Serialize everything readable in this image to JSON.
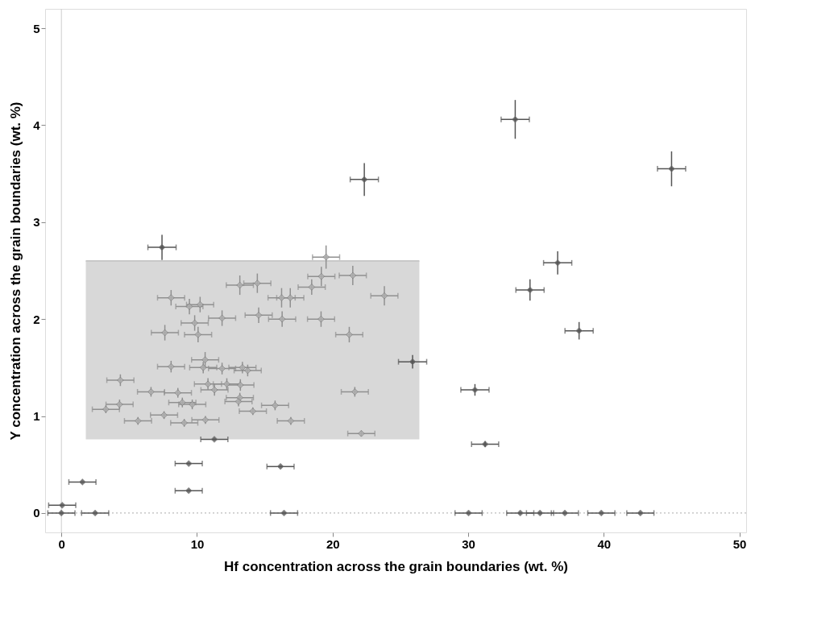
{
  "chart_data": {
    "type": "scatter",
    "xlabel": "Hf concentration across the grain boundaries (wt. %)",
    "ylabel": "Y concentration across the grain boundaries (wt. %)",
    "xlim": [
      -1.2,
      50.5
    ],
    "ylim": [
      -0.2,
      5.2
    ],
    "xticks": [
      0,
      10,
      20,
      30,
      40,
      50
    ],
    "yticks": [
      {
        "value": 0,
        "label": "0"
      },
      {
        "value": 1,
        "label": "1"
      },
      {
        "value": 2,
        "label": "2"
      },
      {
        "value": 3,
        "label": "3"
      },
      {
        "value": 4,
        "label": "4"
      },
      {
        "value": 5,
        "label": "5"
      }
    ],
    "grid": false,
    "legend": false,
    "marker": "diamond",
    "ref_lines": [
      {
        "axis": "y",
        "value": 0,
        "color": "#aaaaaa",
        "line_style": "dotted"
      },
      {
        "axis": "x",
        "value": 0,
        "color": "#cccccc",
        "line_style": "solid"
      }
    ],
    "series": [
      {
        "type": "line",
        "marker": "none",
        "color": "#c8c8c8",
        "x": [
          1.8,
          26.4
        ],
        "values": [
          2.6,
          2.6
        ],
        "lower": [
          0.76,
          0.76
        ],
        "upper": [
          2.6,
          2.6
        ]
      },
      {
        "color": "#b0b0b0",
        "x": [
          19.52,
          19.17,
          21.49,
          18.46,
          13.16,
          14.45,
          16.24,
          16.88,
          23.82,
          8.09,
          9.44,
          10.23,
          11.85,
          14.55,
          16.28,
          19.15,
          9.83,
          7.63,
          10.08,
          21.23,
          10.6,
          8.09,
          10.46,
          11.85,
          13.35,
          13.74,
          4.35,
          10.81,
          12.2,
          13.2,
          11.29,
          6.61,
          8.59,
          21.64,
          13.16,
          13.06,
          8.92,
          9.65,
          15.76,
          4.29,
          3.28,
          7.57,
          14.12,
          5.65,
          9.06,
          10.62,
          16.92,
          22.12
        ],
        "values": [
          2.64,
          2.44,
          2.45,
          2.33,
          2.35,
          2.37,
          2.22,
          2.22,
          2.24,
          2.22,
          2.13,
          2.15,
          2.01,
          2.04,
          2.0,
          2.0,
          1.96,
          1.86,
          1.84,
          1.84,
          1.58,
          1.51,
          1.5,
          1.49,
          1.5,
          1.47,
          1.37,
          1.33,
          1.33,
          1.32,
          1.27,
          1.25,
          1.24,
          1.25,
          1.19,
          1.15,
          1.14,
          1.12,
          1.11,
          1.12,
          1.07,
          1.01,
          1.05,
          0.95,
          0.93,
          0.96,
          0.95,
          0.82
        ],
        "errors": [
          0.12,
          0.1,
          0.1,
          0.08,
          0.1,
          0.1,
          0.1,
          0.1,
          0.1,
          0.08,
          0.08,
          0.08,
          0.08,
          0.08,
          0.08,
          0.08,
          0.08,
          0.08,
          0.08,
          0.08,
          0.08,
          0.06,
          0.06,
          0.06,
          0.06,
          0.06,
          0.06,
          0.06,
          0.06,
          0.06,
          0.06,
          0.05,
          0.05,
          0.05,
          0.05,
          0.05,
          0.05,
          0.05,
          0.05,
          0.05,
          0.04,
          0.04,
          0.04,
          0.04,
          0.04,
          0.04,
          0.04,
          0.03
        ],
        "xerrors": [
          1.0,
          1.0,
          1.0,
          1.0,
          1.0,
          1.0,
          1.0,
          1.0,
          1.0,
          1.0,
          1.0,
          1.0,
          1.0,
          1.0,
          1.0,
          1.0,
          1.0,
          1.0,
          1.0,
          1.0,
          1.0,
          1.0,
          1.0,
          1.0,
          1.0,
          1.0,
          1.0,
          1.0,
          1.0,
          1.0,
          1.0,
          1.0,
          1.0,
          1.0,
          1.0,
          1.0,
          1.0,
          1.0,
          1.0,
          1.0,
          1.0,
          1.0,
          1.0,
          1.0,
          1.0,
          1.0,
          1.0,
          1.0
        ]
      },
      {
        "color": "#555555",
        "x": [
          7.42,
          11.28,
          33.47,
          22.34,
          45.0,
          36.6,
          34.56,
          38.18,
          25.9,
          30.5,
          31.25,
          9.39,
          16.16,
          1.55,
          9.39,
          0.06,
          0.0,
          2.49,
          16.42,
          30.03,
          33.84,
          35.3,
          37.13,
          39.82,
          42.7
        ],
        "values": [
          2.74,
          0.76,
          4.06,
          3.44,
          3.55,
          2.58,
          2.3,
          1.88,
          1.56,
          1.27,
          0.71,
          0.51,
          0.48,
          0.32,
          0.23,
          0.08,
          0.0,
          0.0,
          0.0,
          0.0,
          0.0,
          0.0,
          0.0,
          0.0,
          0.0
        ],
        "errors": [
          0.13,
          null,
          0.2,
          0.17,
          0.18,
          0.12,
          0.11,
          0.09,
          0.07,
          0.06,
          0.03,
          null,
          null,
          null,
          null,
          null,
          null,
          null,
          null,
          null,
          null,
          null,
          null,
          null,
          null
        ],
        "xerrors": [
          1.04,
          1.0,
          1.04,
          1.04,
          1.04,
          1.04,
          1.04,
          1.04,
          1.04,
          1.04,
          1.0,
          1.0,
          1.0,
          1.0,
          1.0,
          1.0,
          1.0,
          1.0,
          1.0,
          1.0,
          1.0,
          1.0,
          1.0,
          1.0,
          1.0
        ]
      }
    ]
  }
}
